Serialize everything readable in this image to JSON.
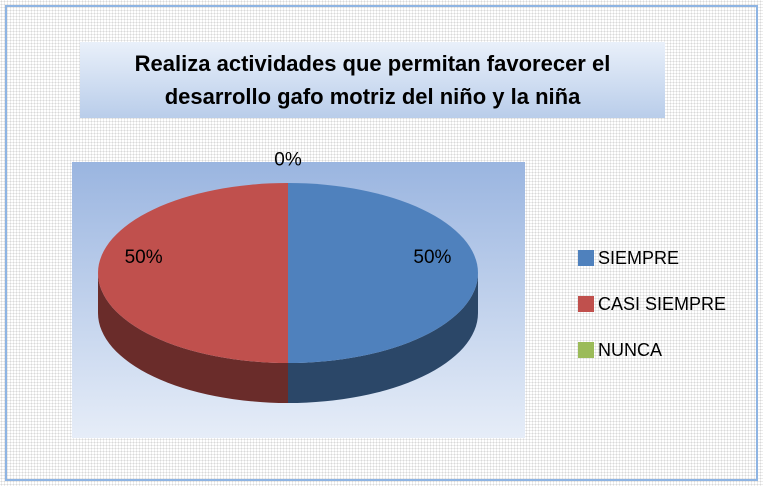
{
  "chart_data": {
    "type": "pie3d",
    "title": "Realiza actividades que permitan favorecer el desarrollo gafo motriz del niño y la niña",
    "categories": [
      "SIEMPRE",
      "CASI SIEMPRE",
      "NUNCA"
    ],
    "values": [
      50,
      50,
      0
    ],
    "value_labels": [
      "50%",
      "50%",
      "0%"
    ],
    "colors": [
      "#4f81bd",
      "#c0504d",
      "#9bbb59"
    ],
    "legend": "right"
  }
}
